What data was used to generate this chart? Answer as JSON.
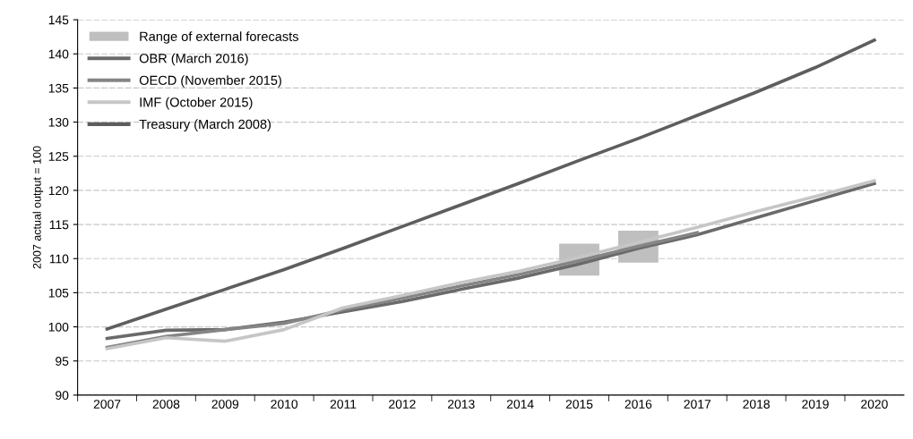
{
  "chart_data": {
    "type": "line",
    "ylabel": "2007 actual output = 100",
    "categories": [
      "2007",
      "2008",
      "2009",
      "2010",
      "2011",
      "2012",
      "2013",
      "2014",
      "2015",
      "2016",
      "2017",
      "2018",
      "2019",
      "2020"
    ],
    "ylim": [
      90,
      145
    ],
    "yticks": [
      90,
      95,
      100,
      105,
      110,
      115,
      120,
      125,
      130,
      135,
      140,
      145
    ],
    "grid": "y",
    "legend": "top left",
    "series": [
      {
        "name": "Range of external forecasts",
        "type": "bar",
        "color": "#bfbfbf",
        "base": [
          null,
          null,
          null,
          null,
          null,
          null,
          null,
          null,
          107.5,
          109.4,
          null,
          null,
          null,
          null
        ],
        "values": [
          null,
          null,
          null,
          null,
          null,
          null,
          null,
          null,
          4.7,
          4.7,
          null,
          null,
          null,
          null
        ]
      },
      {
        "name": "OBR (March 2016)",
        "color": "#6a6a6a",
        "values": [
          98.3,
          99.5,
          99.6,
          100.7,
          102.2,
          103.7,
          105.5,
          107.2,
          109.2,
          111.5,
          113.5,
          116.0,
          118.5,
          121.0
        ]
      },
      {
        "name": "OECD (November 2015)",
        "color": "#858585",
        "values": [
          97.0,
          98.6,
          99.6,
          100.5,
          102.5,
          104.2,
          106.0,
          107.7,
          109.7,
          111.8,
          113.8,
          null,
          null,
          null
        ]
      },
      {
        "name": "IMF (October 2015)",
        "color": "#c6c6c6",
        "values": [
          96.8,
          98.4,
          97.9,
          99.6,
          102.8,
          104.6,
          106.5,
          108.2,
          110.2,
          112.4,
          114.6,
          116.9,
          119.1,
          121.4
        ]
      },
      {
        "name": "Treasury (March 2008)",
        "color": "#5e5e5e",
        "values": [
          99.7,
          102.6,
          105.5,
          108.4,
          111.5,
          114.7,
          117.9,
          121.1,
          124.4,
          127.6,
          131.0,
          134.4,
          138.0,
          142.0
        ]
      }
    ]
  }
}
